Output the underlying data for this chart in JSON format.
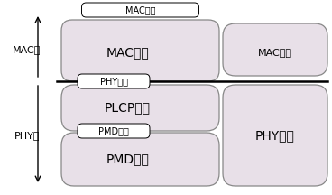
{
  "bg_color": "#ffffff",
  "box_fill": "#e8e0e8",
  "box_fill_white": "#ffffff",
  "box_edge": "#888888",
  "line_color": "#000000",
  "text_color": "#000000",
  "fs_large": 10,
  "fs_med": 8,
  "fs_small": 7,
  "mac_layer_label": "MAC层",
  "phy_layer_label": "PHY层",
  "mac_sublayer_text": "MAC子层",
  "mac_mgmt_text": "MAC管理",
  "mac_if_text": "MAC接口",
  "phy_if_text": "PHY接口",
  "plcp_text": "PLCP子层",
  "pmd_if_text": "PMD接口",
  "pmd_text": "PMD子层",
  "phy_mgmt_text": "PHY管理"
}
